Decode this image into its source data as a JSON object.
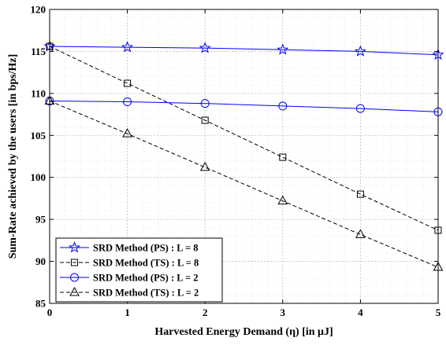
{
  "chart_data": {
    "type": "line",
    "xlabel": "Harvested Energy Demand (η) [in μJ]",
    "ylabel": "Sum-Rate achieved by the users [in bps/Hz]",
    "xlim": [
      0,
      5
    ],
    "ylim": [
      85,
      120
    ],
    "x_ticks": [
      0,
      1,
      2,
      3,
      4,
      5
    ],
    "y_ticks": [
      85,
      90,
      95,
      100,
      105,
      110,
      115,
      120
    ],
    "grid": true,
    "minor_grid": true,
    "legend_position": "bottom-left",
    "x": [
      0,
      1,
      2,
      3,
      4,
      5
    ],
    "series": [
      {
        "name": "SRD Method (PS) : L = 8",
        "values": [
          115.6,
          115.5,
          115.4,
          115.2,
          115.0,
          114.6
        ],
        "color": "#0000ff",
        "dash": "solid",
        "marker": "star"
      },
      {
        "name": "SRD Method (TS) : L = 8",
        "values": [
          115.6,
          111.2,
          106.8,
          102.4,
          98.0,
          93.7
        ],
        "color": "#000000",
        "dash": "dashed",
        "marker": "square"
      },
      {
        "name": "SRD Method (PS) : L = 2",
        "values": [
          109.1,
          109.0,
          108.8,
          108.5,
          108.2,
          107.8
        ],
        "color": "#0000ff",
        "dash": "solid",
        "marker": "circle"
      },
      {
        "name": "SRD Method (TS) : L = 2",
        "values": [
          109.1,
          105.2,
          101.2,
          97.2,
          93.2,
          89.3
        ],
        "color": "#000000",
        "dash": "dashed",
        "marker": "triangle"
      }
    ]
  }
}
